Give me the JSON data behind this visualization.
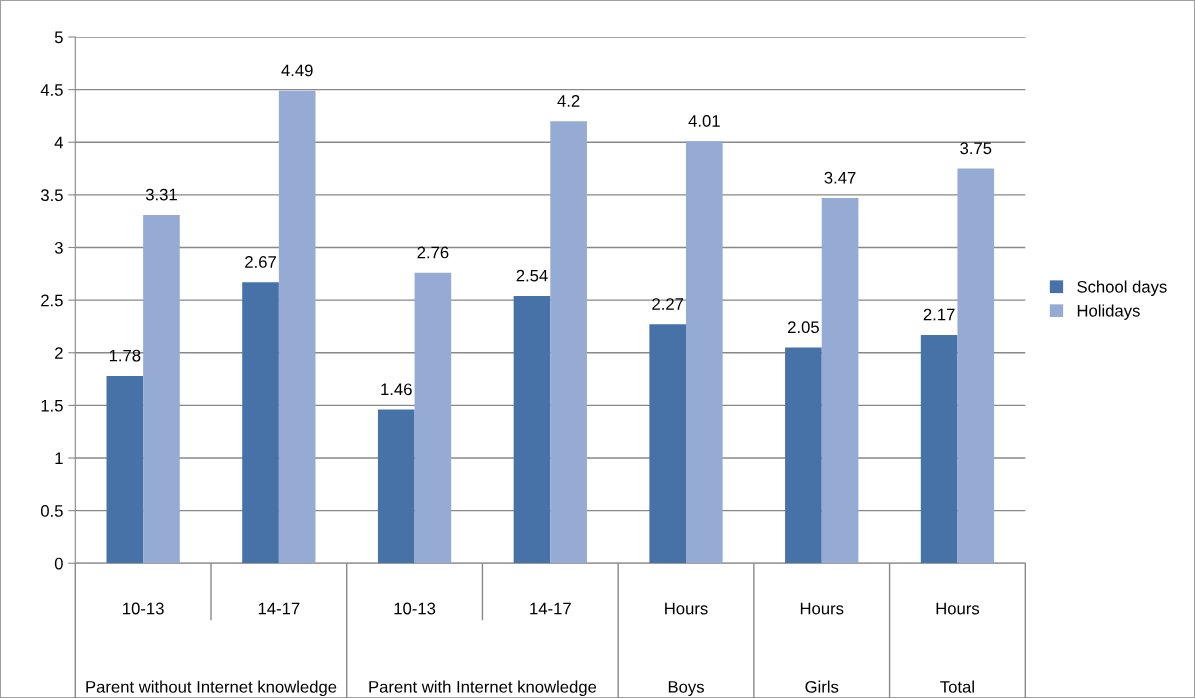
{
  "chart_data": {
    "type": "bar",
    "categories": [
      "10-13",
      "14-17",
      "10-13",
      "14-17",
      "Hours",
      "Hours",
      "Hours"
    ],
    "series": [
      {
        "name": "School days",
        "color": "#4672a8",
        "values": [
          1.78,
          2.67,
          1.46,
          2.54,
          2.27,
          2.05,
          2.17
        ]
      },
      {
        "name": "Holidays",
        "color": "#95abd3",
        "values": [
          3.31,
          4.49,
          2.76,
          4.2,
          4.01,
          3.47,
          3.75
        ]
      }
    ],
    "annotations": [
      "Parent without Internet knowledge",
      "Parent with Internet knowledge",
      "Boys",
      "Girls",
      "Total"
    ],
    "ylim": [
      0,
      5
    ],
    "yticks": [
      0,
      0.5,
      1,
      1.5,
      2,
      2.5,
      3,
      3.5,
      4,
      4.5,
      5
    ],
    "grid": "y",
    "legend": "right",
    "data_labels": true
  }
}
